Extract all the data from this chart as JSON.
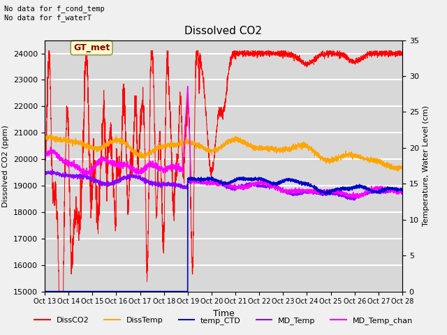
{
  "title": "Dissolved CO2",
  "ylabel_left": "Dissolved CO2 (ppm)",
  "ylabel_right": "Temperature, Water Level (cm)",
  "xlabel": "Time",
  "text_top_left": "No data for f_cond_temp\nNo data for f_waterT",
  "annotation_box": "GT_met",
  "ylim_left": [
    15000,
    24500
  ],
  "ylim_right": [
    0,
    35
  ],
  "yticks_left": [
    15000,
    16000,
    17000,
    18000,
    19000,
    20000,
    21000,
    22000,
    23000,
    24000
  ],
  "yticks_right": [
    0,
    5,
    10,
    15,
    20,
    25,
    30,
    35
  ],
  "xtick_labels": [
    "Oct 13",
    "Oct 14",
    "Oct 15",
    "Oct 16",
    "Oct 17",
    "Oct 18",
    "Oct 19",
    "Oct 20",
    "Oct 21",
    "Oct 22",
    "Oct 23",
    "Oct 24",
    "Oct 25",
    "Oct 26",
    "Oct 27",
    "Oct 28"
  ],
  "fig_bg_color": "#f0f0f0",
  "plot_bg_color": "#d8d8d8",
  "grid_color": "#ffffff",
  "legend_labels": [
    "DissCO2",
    "DissTemp",
    "temp_CTD",
    "MD_Temp",
    "MD_Temp_chan"
  ],
  "legend_colors": [
    "#ff0000",
    "#ffa500",
    "#0000cd",
    "#8b00ff",
    "#ff00ff"
  ],
  "dissCO2_color": "#ff0000",
  "dissTemp_color": "#ffa500",
  "tempCTD_color": "#0000cd",
  "MDTemp_color": "#8b00ff",
  "MDTempChan_color": "#ff00ff"
}
